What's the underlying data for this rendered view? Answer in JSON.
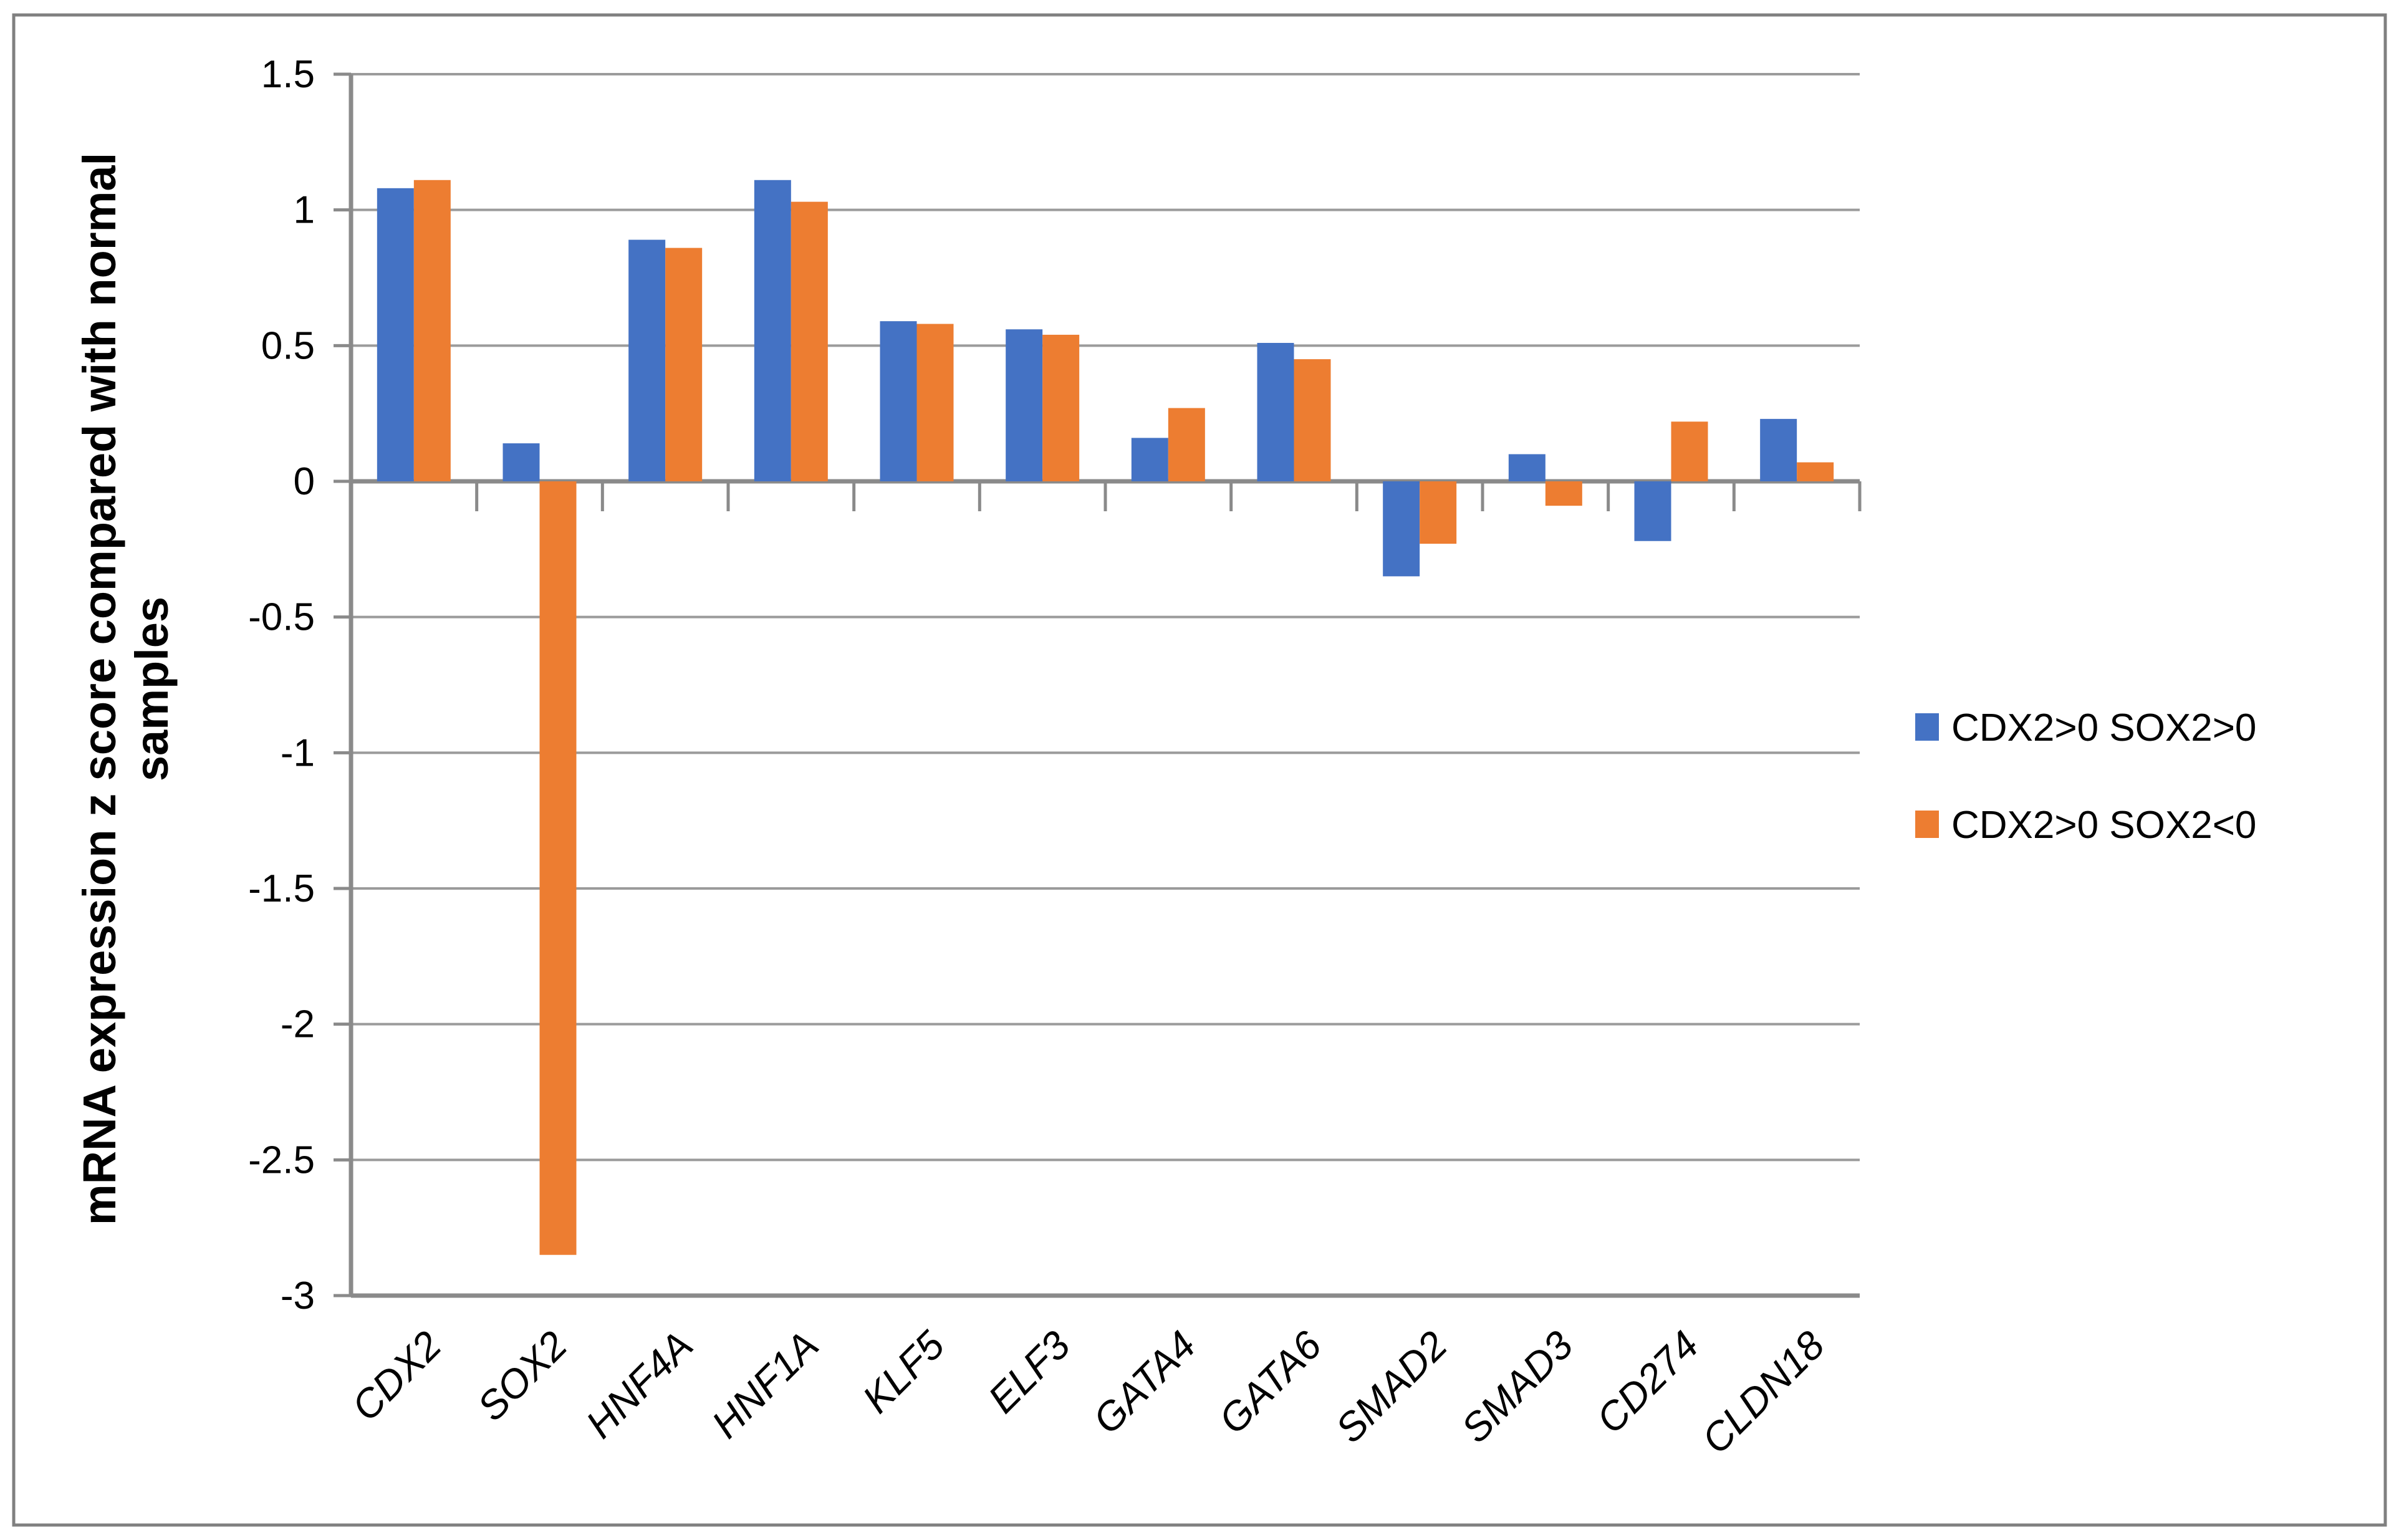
{
  "chart_data": {
    "type": "bar",
    "title": "",
    "xlabel": "",
    "ylabel": "mRNA expression z score compared with normal samples",
    "ylabel_lines": [
      "mRNA expression z score compared with normal",
      "samples"
    ],
    "categories": [
      "CDX2",
      "SOX2",
      "HNF4A",
      "HNF1A",
      "KLF5",
      "ELF3",
      "GATA4",
      "GATA6",
      "SMAD2",
      "SMAD3",
      "CD274",
      "CLDN18"
    ],
    "series": [
      {
        "name": "CDX2>0 SOX2>0",
        "color": "#4472C4",
        "values": [
          1.08,
          0.14,
          0.89,
          1.11,
          0.59,
          0.56,
          0.16,
          0.51,
          -0.35,
          0.1,
          -0.22,
          0.23
        ]
      },
      {
        "name": "CDX2>0 SOX2<0",
        "color": "#ED7D31",
        "values": [
          1.11,
          -2.85,
          0.86,
          1.03,
          0.58,
          0.54,
          0.27,
          0.45,
          -0.23,
          -0.09,
          0.22,
          0.07
        ]
      }
    ],
    "ylim": [
      -3,
      1.5
    ],
    "ytick_step": 0.5,
    "ytick_labels": [
      "1.5",
      "1",
      "0.5",
      "0",
      "-0.5",
      "-1",
      "-1.5",
      "-2",
      "-2.5",
      "-3"
    ],
    "grid": true,
    "legend_position": "right"
  },
  "colors": {
    "grid": "#9b9b9b",
    "axis": "#8a8a8a",
    "border": "#808080",
    "text": "#000000",
    "background": "#ffffff"
  }
}
